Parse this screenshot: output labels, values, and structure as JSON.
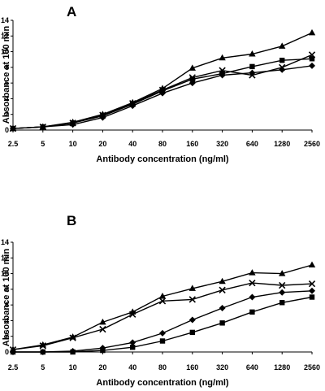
{
  "chart_data": [
    {
      "type": "line",
      "panel_label": "A",
      "xlabel": "Antibody concentration (ng/ml)",
      "ylabel": "Absorbance at 100 min",
      "x_scale": "categorical",
      "categories": [
        "2.5",
        "5",
        "10",
        "20",
        "40",
        "80",
        "160",
        "320",
        "640",
        "1280",
        "2560"
      ],
      "yticks": [
        "0",
        "2",
        "4",
        "6",
        "8",
        "10",
        "12",
        "14"
      ],
      "ylim": [
        0,
        14
      ],
      "grid": false,
      "legend": "none",
      "series": [
        {
          "marker": "diamond",
          "values": [
            0.2,
            0.4,
            0.7,
            1.6,
            3.1,
            4.7,
            6.0,
            7.0,
            7.3,
            7.7,
            8.2
          ]
        },
        {
          "marker": "square",
          "values": [
            0.2,
            0.4,
            0.9,
            1.8,
            3.3,
            5.0,
            6.5,
            7.2,
            8.1,
            8.9,
            9.1
          ]
        },
        {
          "marker": "triangle",
          "values": [
            0.2,
            0.4,
            1.0,
            2.0,
            3.5,
            5.3,
            7.9,
            9.2,
            9.7,
            10.7,
            12.4
          ]
        },
        {
          "marker": "x",
          "values": [
            0.2,
            0.4,
            0.9,
            1.9,
            3.4,
            5.1,
            6.7,
            7.6,
            7.0,
            8.0,
            9.6
          ]
        }
      ]
    },
    {
      "type": "line",
      "panel_label": "B",
      "xlabel": "Antibody concentration (ng/ml)",
      "ylabel": "Absorbance at 100 min",
      "x_scale": "categorical",
      "categories": [
        "2.5",
        "5",
        "10",
        "20",
        "40",
        "80",
        "160",
        "320",
        "640",
        "1280",
        "2560"
      ],
      "yticks": [
        "0",
        "2",
        "4",
        "6",
        "8",
        "10",
        "12",
        "14"
      ],
      "ylim": [
        0,
        14
      ],
      "grid": false,
      "legend": "none",
      "series": [
        {
          "marker": "diamond",
          "values": [
            0.0,
            0.0,
            0.1,
            0.5,
            1.2,
            2.4,
            4.1,
            5.6,
            7.0,
            7.6,
            7.8
          ]
        },
        {
          "marker": "square",
          "values": [
            0.0,
            0.0,
            0.0,
            0.2,
            0.6,
            1.4,
            2.5,
            3.7,
            5.1,
            6.3,
            7.0
          ]
        },
        {
          "marker": "triangle",
          "values": [
            0.3,
            0.9,
            1.9,
            3.8,
            5.1,
            7.1,
            8.1,
            9.0,
            10.1,
            10.0,
            11.1
          ]
        },
        {
          "marker": "x",
          "values": [
            0.3,
            0.8,
            1.8,
            2.9,
            4.8,
            6.5,
            6.7,
            7.9,
            8.8,
            8.5,
            8.7
          ]
        }
      ]
    }
  ]
}
